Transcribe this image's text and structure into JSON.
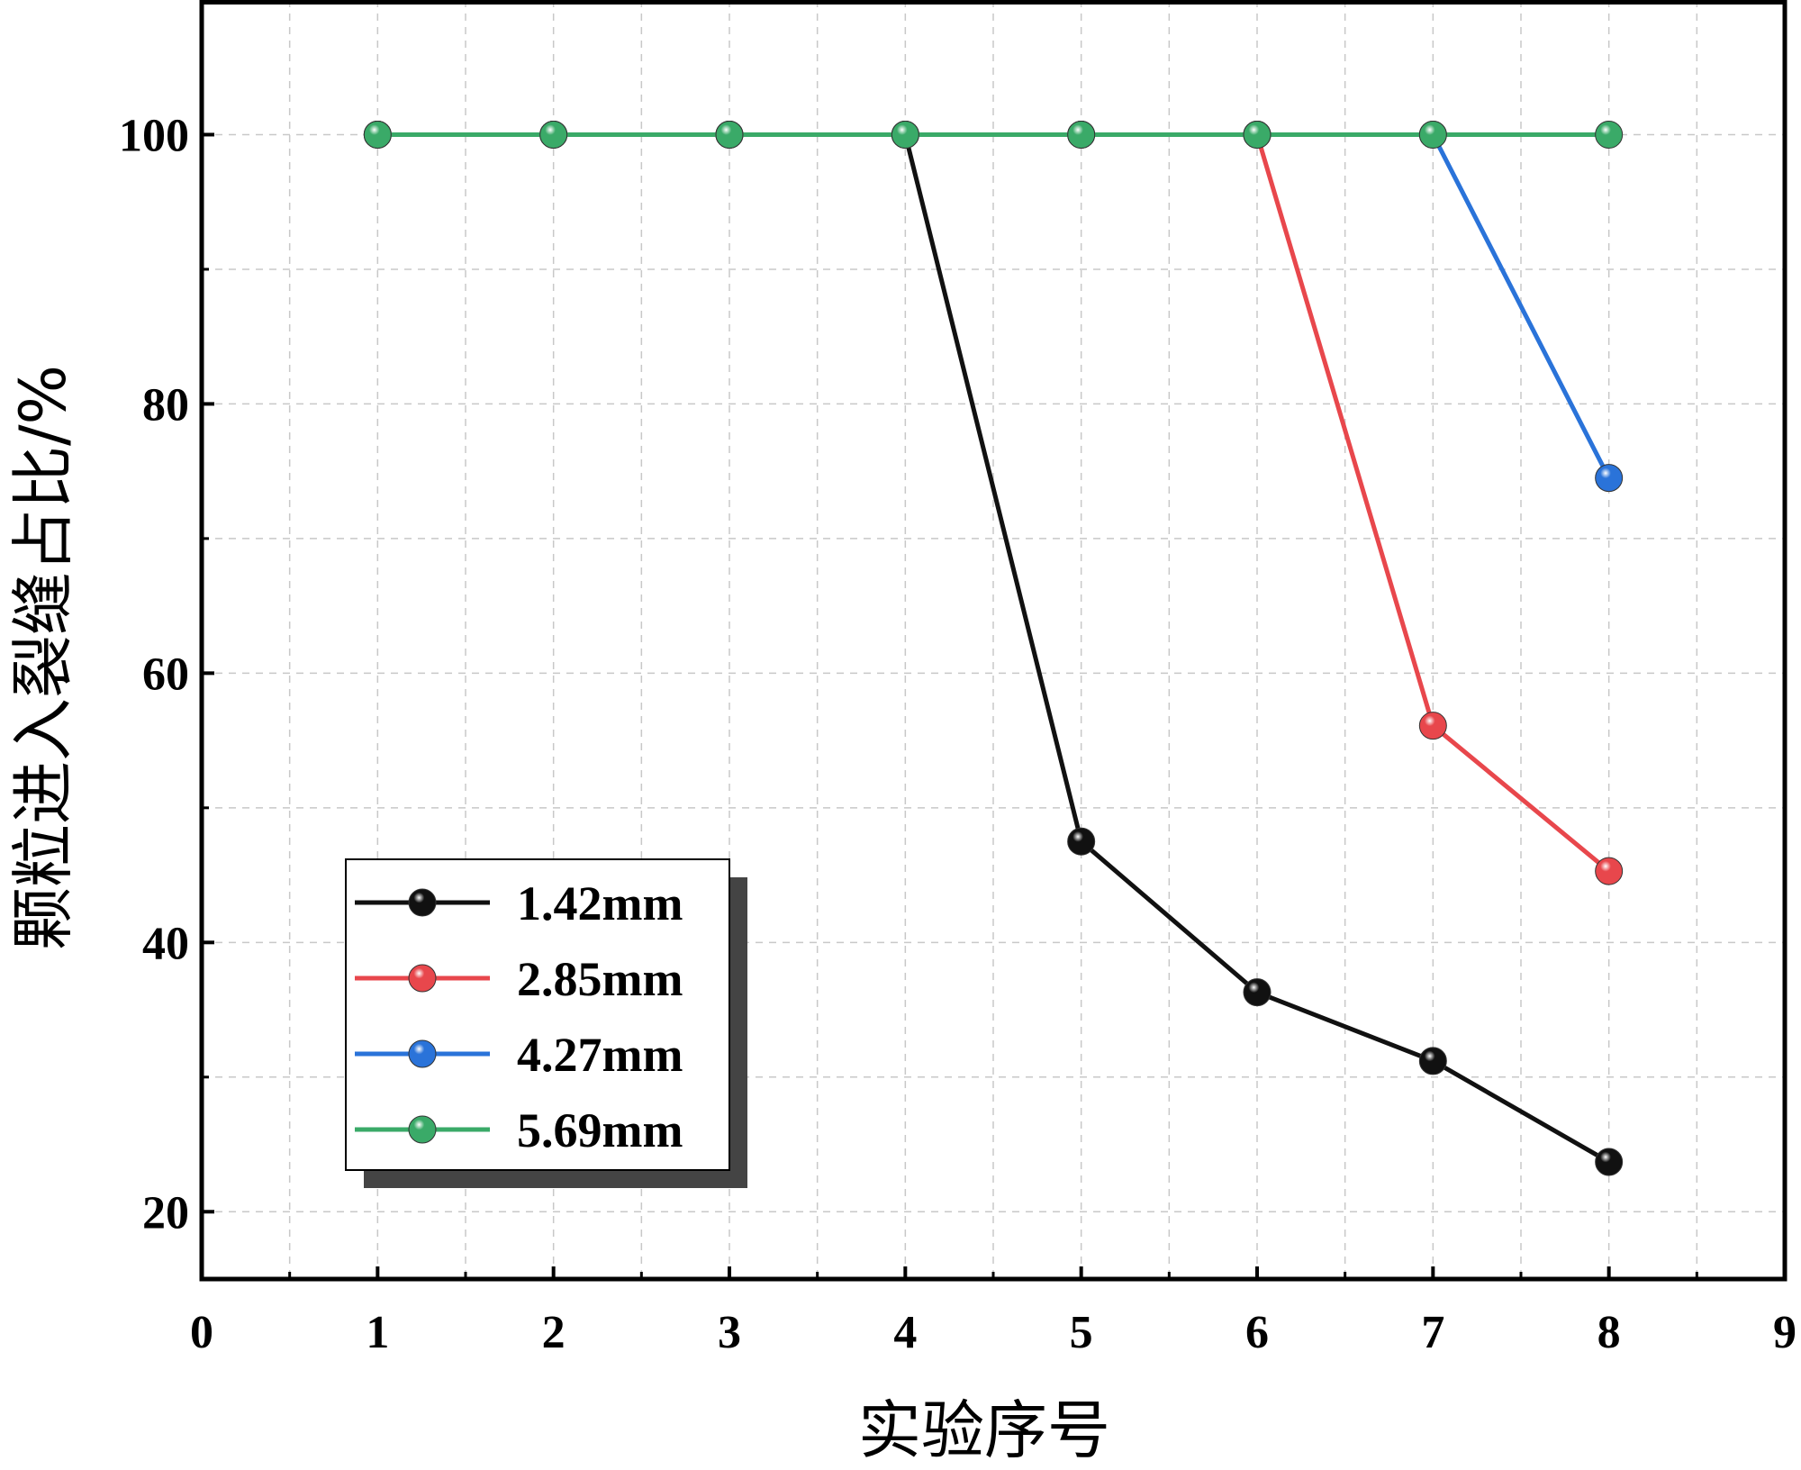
{
  "chart_data": {
    "type": "line",
    "xlabel": "实验序号",
    "ylabel": "颗粒进入裂缝占比/%",
    "xlim": [
      0,
      9
    ],
    "ylim": [
      15,
      110
    ],
    "x_ticks": [
      0,
      1,
      2,
      3,
      4,
      5,
      6,
      7,
      8,
      9
    ],
    "y_ticks": [
      20,
      40,
      60,
      80,
      100
    ],
    "x_minor_grid": [
      0.5,
      1.5,
      2.5,
      3.5,
      4.5,
      5.5,
      6.5,
      7.5,
      8.5
    ],
    "y_minor_grid": [
      30,
      50,
      70,
      90
    ],
    "grid": true,
    "legend_position": "bottom-left",
    "x": [
      1,
      2,
      3,
      4,
      5,
      6,
      7,
      8
    ],
    "series": [
      {
        "name": "1.42mm",
        "color": "#111111",
        "values": [
          100,
          100,
          100,
          100,
          47.5,
          36.3,
          31.2,
          23.7
        ]
      },
      {
        "name": "2.85mm",
        "color": "#e8474c",
        "values": [
          100,
          100,
          100,
          100,
          100,
          100,
          56.1,
          45.3
        ]
      },
      {
        "name": "4.27mm",
        "color": "#2a73d9",
        "values": [
          100,
          100,
          100,
          100,
          100,
          100,
          100,
          74.5
        ]
      },
      {
        "name": "5.69mm",
        "color": "#3aaa68",
        "values": [
          100,
          100,
          100,
          100,
          100,
          100,
          100,
          100
        ]
      }
    ]
  }
}
